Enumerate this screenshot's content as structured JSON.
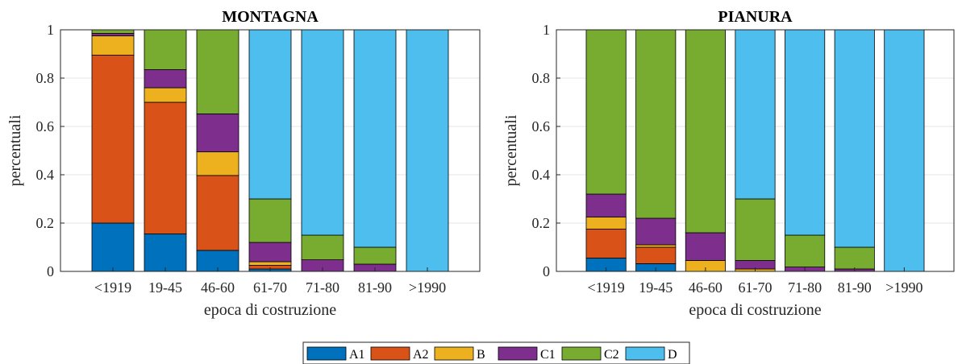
{
  "chart_data": [
    {
      "type": "bar",
      "stacked": true,
      "title": "MONTAGNA",
      "xlabel": "epoca di costruzione",
      "ylabel": "percentuali",
      "ylim": [
        0,
        1
      ],
      "yticks": [
        "0",
        "0.2",
        "0.4",
        "0.6",
        "0.8",
        "1"
      ],
      "grid": "horizontal",
      "categories": [
        "<1919",
        "19-45",
        "46-60",
        "61-70",
        "71-80",
        "81-90",
        ">1990"
      ],
      "series": [
        {
          "name": "A1",
          "values": [
            0.2,
            0.155,
            0.087,
            0.01,
            0,
            0,
            0
          ]
        },
        {
          "name": "A2",
          "values": [
            0.695,
            0.545,
            0.31,
            0.015,
            0,
            0,
            0
          ]
        },
        {
          "name": "B",
          "values": [
            0.08,
            0.06,
            0.098,
            0.015,
            0,
            0,
            0
          ]
        },
        {
          "name": "C1",
          "values": [
            0.01,
            0.075,
            0.157,
            0.08,
            0.048,
            0.03,
            0
          ]
        },
        {
          "name": "C2",
          "values": [
            0.015,
            0.165,
            0.348,
            0.18,
            0.102,
            0.07,
            0
          ]
        },
        {
          "name": "D",
          "values": [
            0,
            0,
            0,
            0.7,
            0.85,
            0.9,
            1
          ]
        }
      ]
    },
    {
      "type": "bar",
      "stacked": true,
      "title": "PIANURA",
      "xlabel": "epoca di costruzione",
      "ylabel": "percentuali",
      "ylim": [
        0,
        1
      ],
      "yticks": [
        "0",
        "0.2",
        "0.4",
        "0.6",
        "0.8",
        "1"
      ],
      "grid": "horizontal",
      "categories": [
        "<1919",
        "19-45",
        "46-60",
        "61-70",
        "71-80",
        "81-90",
        ">1990"
      ],
      "series": [
        {
          "name": "A1",
          "values": [
            0.055,
            0.032,
            0,
            0,
            0,
            0,
            0
          ]
        },
        {
          "name": "A2",
          "values": [
            0.12,
            0.068,
            0,
            0,
            0,
            0,
            0
          ]
        },
        {
          "name": "B",
          "values": [
            0.05,
            0.01,
            0.045,
            0.01,
            0,
            0,
            0
          ]
        },
        {
          "name": "C1",
          "values": [
            0.095,
            0.11,
            0.115,
            0.035,
            0.018,
            0.01,
            0
          ]
        },
        {
          "name": "C2",
          "values": [
            0.68,
            0.78,
            0.84,
            0.255,
            0.132,
            0.09,
            0
          ]
        },
        {
          "name": "D",
          "values": [
            0,
            0,
            0,
            0.7,
            0.85,
            0.9,
            1
          ]
        }
      ]
    }
  ],
  "legend": {
    "position": "bottom-center",
    "items": [
      {
        "label": "A1",
        "color": "#0072BD"
      },
      {
        "label": "A2",
        "color": "#D95319"
      },
      {
        "label": "B",
        "color": "#EDB120"
      },
      {
        "label": "C1",
        "color": "#7E2F8E"
      },
      {
        "label": "C2",
        "color": "#77AC30"
      },
      {
        "label": "D",
        "color": "#4DBEEE"
      }
    ]
  }
}
